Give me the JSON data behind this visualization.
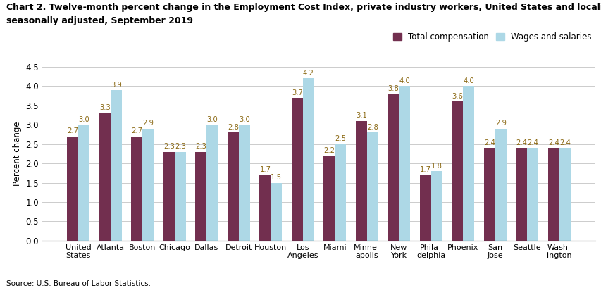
{
  "title_line1": "Chart 2. Twelve-month percent change in the Employment Cost Index, private industry workers, United States and localities, not",
  "title_line2": "seasonally adjusted, September 2019",
  "ylabel": "Percent change",
  "source": "Source: U.S. Bureau of Labor Statistics.",
  "categories": [
    "United\nStates",
    "Atlanta",
    "Boston",
    "Chicago",
    "Dallas",
    "Detroit",
    "Houston",
    "Los\nAngeles",
    "Miami",
    "Minne-\napolis",
    "New\nYork",
    "Phila-\ndelphia",
    "Phoenix",
    "San\nJose",
    "Seattle",
    "Wash-\nington"
  ],
  "total_compensation": [
    2.7,
    3.3,
    2.7,
    2.3,
    2.3,
    2.8,
    1.7,
    3.7,
    2.2,
    3.1,
    3.8,
    1.7,
    3.6,
    2.4,
    2.4,
    2.4
  ],
  "wages_and_salaries": [
    3.0,
    3.9,
    2.9,
    2.3,
    3.0,
    3.0,
    1.5,
    4.2,
    2.5,
    2.8,
    4.0,
    1.8,
    4.0,
    2.9,
    2.4,
    2.4
  ],
  "total_comp_color": "#722F4F",
  "wages_color": "#ADD8E6",
  "ylim": [
    0,
    4.5
  ],
  "yticks": [
    0.0,
    0.5,
    1.0,
    1.5,
    2.0,
    2.5,
    3.0,
    3.5,
    4.0,
    4.5
  ],
  "bar_width": 0.35,
  "title_fontsize": 9,
  "axis_fontsize": 8.5,
  "tick_fontsize": 8.5,
  "value_label_fontsize": 7.2,
  "legend_fontsize": 8.5,
  "source_fontsize": 7.5,
  "xtick_fontsize": 8.0
}
